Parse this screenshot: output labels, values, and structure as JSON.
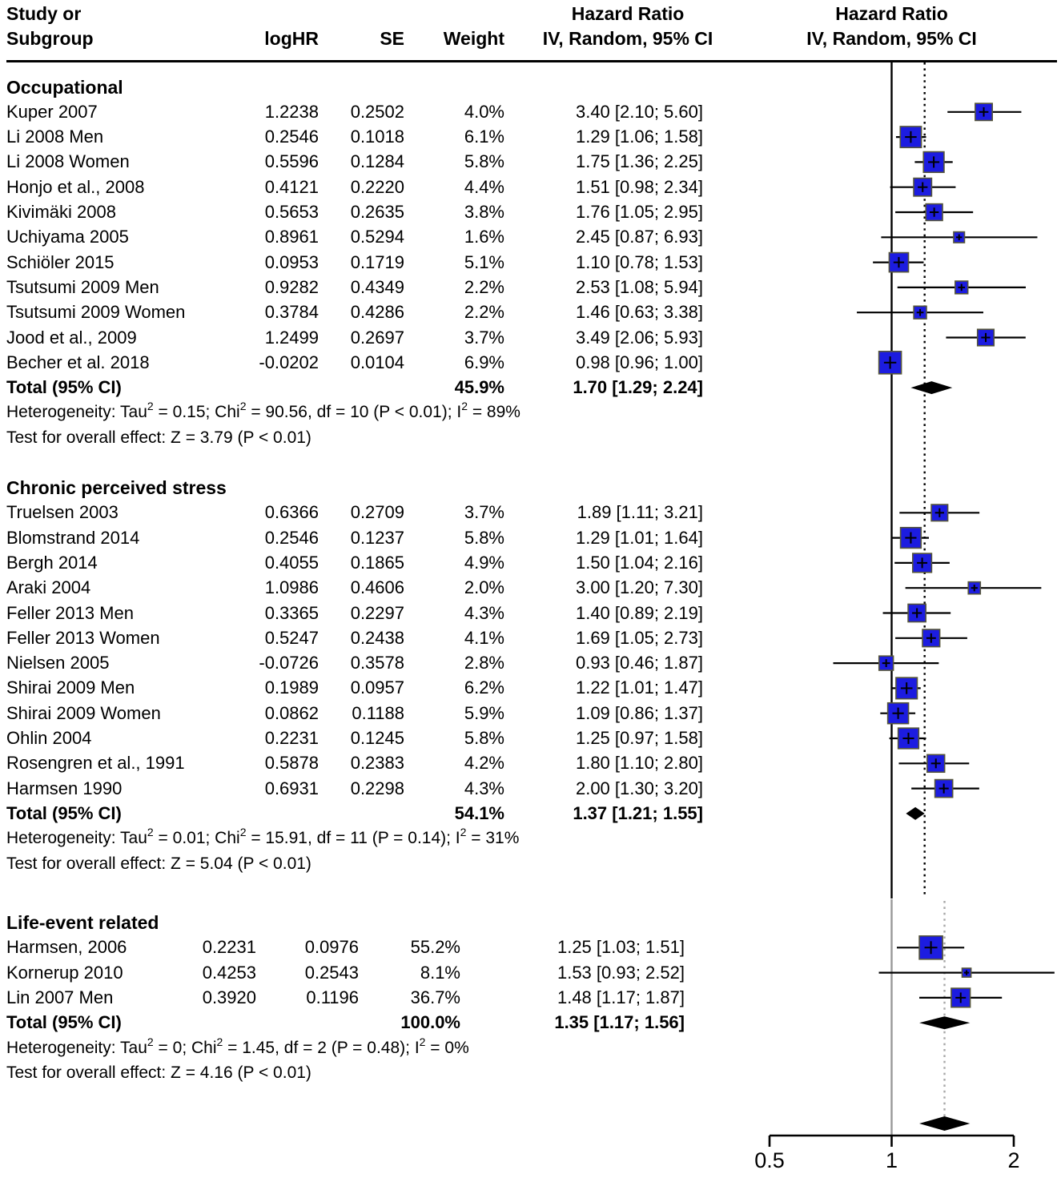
{
  "header": {
    "study_line1": "Study or",
    "study_line2": "Subgroup",
    "loghr": "logHR",
    "se": "SE",
    "weight": "Weight",
    "hr_line1": "Hazard Ratio",
    "hr_line2": "IV, Random, 95% CI",
    "plot_hr_line1": "Hazard Ratio",
    "plot_hr_line2": "IV, Random, 95% CI"
  },
  "colors": {
    "square_fill": "#1c1ce0",
    "square_border": "#55553a",
    "marker": "#000000",
    "ci_line": "#000000",
    "diamond": "#000000",
    "upper_ref_line": "#000000",
    "upper_pooled_line": "#000000",
    "lower_ref_line": "#989898",
    "lower_pooled_line": "#a8a8a8"
  },
  "chart_data": {
    "type": "forest",
    "x_scale": "log",
    "ref_line": 1.0,
    "x_ticks": {
      "labels": [
        "0.5",
        "1",
        "2"
      ],
      "values": [
        0.5,
        1,
        2
      ]
    },
    "analyses": [
      {
        "id": "upper",
        "pooled_dotted_hr": 1.55
      },
      {
        "id": "lower",
        "pooled_dotted_hr": 1.35
      }
    ],
    "groups": [
      {
        "label": "Occupational",
        "plot": "upper",
        "studies": [
          {
            "name": "Kuper 2007",
            "loghr": "1.2238",
            "se": "0.2502",
            "weight": "4.0%",
            "w": 4.0,
            "ci": "3.40 [2.10; 5.60]",
            "hr": 3.4,
            "lo": 2.1,
            "hi": 5.6
          },
          {
            "name": "Li 2008  Men",
            "loghr": "0.2546",
            "se": "0.1018",
            "weight": "6.1%",
            "w": 6.1,
            "ci": "1.29 [1.06; 1.58]",
            "hr": 1.29,
            "lo": 1.06,
            "hi": 1.58
          },
          {
            "name": "Li 2008 Women",
            "loghr": "0.5596",
            "se": "0.1284",
            "weight": "5.8%",
            "w": 5.8,
            "ci": "1.75 [1.36; 2.25]",
            "hr": 1.75,
            "lo": 1.36,
            "hi": 2.25
          },
          {
            "name": "Honjo et al., 2008",
            "loghr": "0.4121",
            "se": "0.2220",
            "weight": "4.4%",
            "w": 4.4,
            "ci": "1.51 [0.98; 2.34]",
            "hr": 1.51,
            "lo": 0.98,
            "hi": 2.34
          },
          {
            "name": "Kivimäki 2008",
            "loghr": "0.5653",
            "se": "0.2635",
            "weight": "3.8%",
            "w": 3.8,
            "ci": "1.76 [1.05; 2.95]",
            "hr": 1.76,
            "lo": 1.05,
            "hi": 2.95
          },
          {
            "name": "Uchiyama 2005",
            "loghr": "0.8961",
            "se": "0.5294",
            "weight": "1.6%",
            "w": 1.6,
            "ci": "2.45 [0.87; 6.93]",
            "hr": 2.45,
            "lo": 0.87,
            "hi": 6.93
          },
          {
            "name": "Schiöler 2015",
            "loghr": "0.0953",
            "se": "0.1719",
            "weight": "5.1%",
            "w": 5.1,
            "ci": "1.10 [0.78; 1.53]",
            "hr": 1.1,
            "lo": 0.78,
            "hi": 1.53
          },
          {
            "name": "Tsutsumi 2009 Men",
            "loghr": "0.9282",
            "se": "0.4349",
            "weight": "2.2%",
            "w": 2.2,
            "ci": "2.53 [1.08; 5.94]",
            "hr": 2.53,
            "lo": 1.08,
            "hi": 5.94
          },
          {
            "name": "Tsutsumi 2009 Women",
            "loghr": "0.3784",
            "se": "0.4286",
            "weight": "2.2%",
            "w": 2.2,
            "ci": "1.46 [0.63; 3.38]",
            "hr": 1.46,
            "lo": 0.63,
            "hi": 3.38
          },
          {
            "name": "Jood et al., 2009",
            "loghr": "1.2499",
            "se": "0.2697",
            "weight": "3.7%",
            "w": 3.7,
            "ci": "3.49 [2.06; 5.93]",
            "hr": 3.49,
            "lo": 2.06,
            "hi": 5.93
          },
          {
            "name": "Becher et al. 2018",
            "loghr": "-0.0202",
            "se": "0.0104",
            "weight": "6.9%",
            "w": 6.9,
            "ci": "0.98 [0.96; 1.00]",
            "hr": 0.98,
            "lo": 0.96,
            "hi": 1.0
          }
        ],
        "total": {
          "name": "Total (95% CI)",
          "weight": "45.9%",
          "ci": "1.70 [1.29; 2.24]",
          "hr": 1.7,
          "lo": 1.29,
          "hi": 2.24
        },
        "het": {
          "pre": "Heterogeneity: Tau",
          "sup": "2",
          "m1": " = 0.15; Chi",
          "m2": " = 90.56, df = 10 (P < 0.01); I",
          "post": " = 89%"
        },
        "test": "Test for overall effect: Z = 3.79 (P < 0.01)"
      },
      {
        "label": "Chronic perceived stress",
        "plot": "upper",
        "studies": [
          {
            "name": "Truelsen 2003",
            "loghr": "0.6366",
            "se": "0.2709",
            "weight": "3.7%",
            "w": 3.7,
            "ci": "1.89 [1.11; 3.21]",
            "hr": 1.89,
            "lo": 1.11,
            "hi": 3.21
          },
          {
            "name": "Blomstrand 2014",
            "loghr": "0.2546",
            "se": "0.1237",
            "weight": "5.8%",
            "w": 5.8,
            "ci": "1.29 [1.01; 1.64]",
            "hr": 1.29,
            "lo": 1.01,
            "hi": 1.64
          },
          {
            "name": "Bergh 2014",
            "loghr": "0.4055",
            "se": "0.1865",
            "weight": "4.9%",
            "w": 4.9,
            "ci": "1.50 [1.04; 2.16]",
            "hr": 1.5,
            "lo": 1.04,
            "hi": 2.16
          },
          {
            "name": "Araki 2004",
            "loghr": "1.0986",
            "se": "0.4606",
            "weight": "2.0%",
            "w": 2.0,
            "ci": "3.00 [1.20; 7.30]",
            "hr": 3.0,
            "lo": 1.2,
            "hi": 7.3
          },
          {
            "name": "Feller 2013 Men",
            "loghr": "0.3365",
            "se": "0.2297",
            "weight": "4.3%",
            "w": 4.3,
            "ci": "1.40 [0.89; 2.19]",
            "hr": 1.4,
            "lo": 0.89,
            "hi": 2.19
          },
          {
            "name": "Feller 2013 Women",
            "loghr": "0.5247",
            "se": "0.2438",
            "weight": "4.1%",
            "w": 4.1,
            "ci": "1.69 [1.05; 2.73]",
            "hr": 1.69,
            "lo": 1.05,
            "hi": 2.73
          },
          {
            "name": "Nielsen 2005",
            "loghr": "-0.0726",
            "se": "0.3578",
            "weight": "2.8%",
            "w": 2.8,
            "ci": "0.93 [0.46; 1.87]",
            "hr": 0.93,
            "lo": 0.46,
            "hi": 1.87
          },
          {
            "name": "Shirai 2009 Men",
            "loghr": "0.1989",
            "se": "0.0957",
            "weight": "6.2%",
            "w": 6.2,
            "ci": "1.22 [1.01; 1.47]",
            "hr": 1.22,
            "lo": 1.01,
            "hi": 1.47
          },
          {
            "name": "Shirai 2009 Women",
            "loghr": "0.0862",
            "se": "0.1188",
            "weight": "5.9%",
            "w": 5.9,
            "ci": "1.09 [0.86; 1.37]",
            "hr": 1.09,
            "lo": 0.86,
            "hi": 1.37
          },
          {
            "name": "Ohlin 2004",
            "loghr": "0.2231",
            "se": "0.1245",
            "weight": "5.8%",
            "w": 5.8,
            "ci": "1.25 [0.97; 1.58]",
            "hr": 1.25,
            "lo": 0.97,
            "hi": 1.58
          },
          {
            "name": "Rosengren et al., 1991",
            "loghr": "0.5878",
            "se": "0.2383",
            "weight": "4.2%",
            "w": 4.2,
            "ci": "1.80 [1.10; 2.80]",
            "hr": 1.8,
            "lo": 1.1,
            "hi": 2.8
          },
          {
            "name": "Harmsen 1990",
            "loghr": "0.6931",
            "se": "0.2298",
            "weight": "4.3%",
            "w": 4.3,
            "ci": "2.00 [1.30; 3.20]",
            "hr": 2.0,
            "lo": 1.3,
            "hi": 3.2
          }
        ],
        "total": {
          "name": "Total (95% CI)",
          "weight": "54.1%",
          "ci": "1.37 [1.21; 1.55]",
          "hr": 1.37,
          "lo": 1.21,
          "hi": 1.55
        },
        "het": {
          "pre": "Heterogeneity: Tau",
          "sup": "2",
          "m1": " = 0.01; Chi",
          "m2": " = 15.91, df = 11 (P = 0.14); I",
          "post": " = 31%"
        },
        "test": "Test for overall effect: Z = 5.04 (P < 0.01)"
      },
      {
        "label": "Life-event related",
        "plot": "lower",
        "studies": [
          {
            "name": "Harmsen, 2006",
            "loghr": "0.2231",
            "se": "0.0976",
            "weight": "55.2%",
            "w": 55.2,
            "ci": "1.25 [1.03; 1.51]",
            "hr": 1.25,
            "lo": 1.03,
            "hi": 1.51
          },
          {
            "name": "Kornerup 2010",
            "loghr": "0.4253",
            "se": "0.2543",
            "weight": "8.1%",
            "w": 8.1,
            "ci": "1.53 [0.93; 2.52]",
            "hr": 1.53,
            "lo": 0.93,
            "hi": 2.52
          },
          {
            "name": "Lin 2007 Men",
            "loghr": "0.3920",
            "se": "0.1196",
            "weight": "36.7%",
            "w": 36.7,
            "ci": "1.48 [1.17; 1.87]",
            "hr": 1.48,
            "lo": 1.17,
            "hi": 1.87
          }
        ],
        "total": {
          "name": "Total (95% CI)",
          "weight": "100.0%",
          "ci": "1.35 [1.17; 1.56]",
          "hr": 1.35,
          "lo": 1.17,
          "hi": 1.56
        },
        "het": {
          "pre": "Heterogeneity: Tau",
          "sup": "2",
          "m1": " = 0; Chi",
          "m2": " = 1.45, df = 2 (P = 0.48); I",
          "post": " = 0%"
        },
        "test": "Test for overall effect: Z = 4.16 (P < 0.01)"
      }
    ],
    "overall_diamond": {
      "hr": 1.35,
      "lo": 1.17,
      "hi": 1.56
    }
  }
}
